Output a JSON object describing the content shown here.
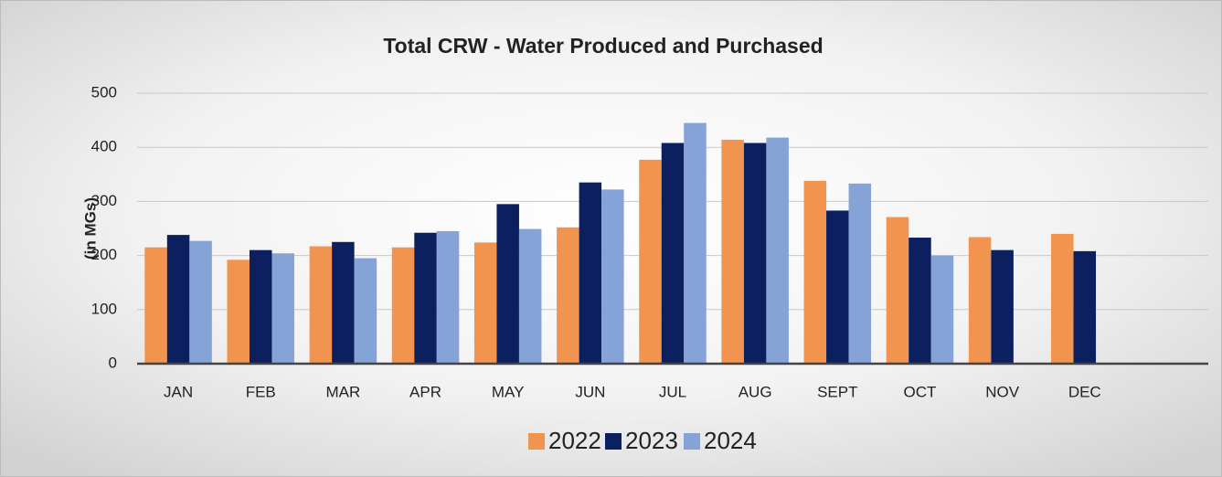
{
  "chart_data": {
    "type": "bar",
    "title": "Total CRW - Water Produced and Purchased",
    "ylabel": "(in MGs)",
    "categories": [
      "JAN",
      "FEB",
      "MAR",
      "APR",
      "MAY",
      "JUN",
      "JUL",
      "AUG",
      "SEPT",
      "OCT",
      "NOV",
      "DEC",
      null
    ],
    "series": [
      {
        "name": "2022",
        "color": "#f0944f",
        "values": [
          215,
          192,
          217,
          215,
          224,
          252,
          377,
          414,
          338,
          271,
          234,
          240,
          null
        ]
      },
      {
        "name": "2023",
        "color": "#0c1f5e",
        "values": [
          238,
          210,
          225,
          242,
          295,
          335,
          408,
          408,
          283,
          233,
          210,
          208,
          null
        ]
      },
      {
        "name": "2024",
        "color": "#86a3d8",
        "values": [
          227,
          204,
          195,
          245,
          249,
          322,
          445,
          418,
          333,
          200,
          null,
          null,
          null
        ]
      }
    ],
    "ylim": [
      0,
      500
    ],
    "yticks": [
      0,
      100,
      200,
      300,
      400,
      500
    ],
    "grid": true,
    "legend": "bottom"
  }
}
